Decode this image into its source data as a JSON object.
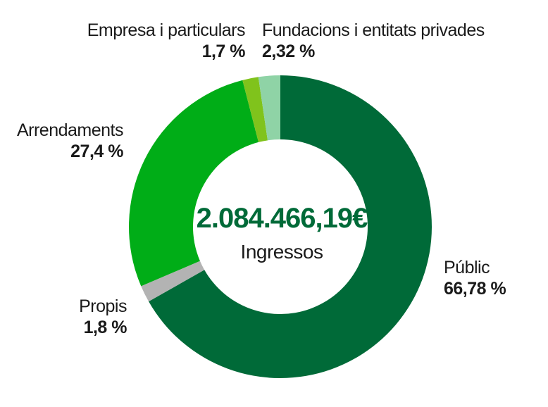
{
  "chart_data": {
    "type": "pie",
    "center_value": "2.084.466,19€",
    "center_label": "Ingressos",
    "slices": [
      {
        "label": "Públic",
        "value_text": "66,78 %",
        "value": 66.78,
        "color": "#006a38"
      },
      {
        "label": "Propis",
        "value_text": "1,8 %",
        "value": 1.8,
        "color": "#b3b3b3"
      },
      {
        "label": "Arrendaments",
        "value_text": "27,4 %",
        "value": 27.4,
        "color": "#00ad17"
      },
      {
        "label": "Empresa i particulars",
        "value_text": "1,7 %",
        "value": 1.7,
        "color": "#80c31c"
      },
      {
        "label": "Fundacions i entitats privades",
        "value_text": "2,32 %",
        "value": 2.32,
        "color": "#8fd3a6"
      }
    ]
  },
  "colors": {
    "total_text": "#006a38"
  }
}
